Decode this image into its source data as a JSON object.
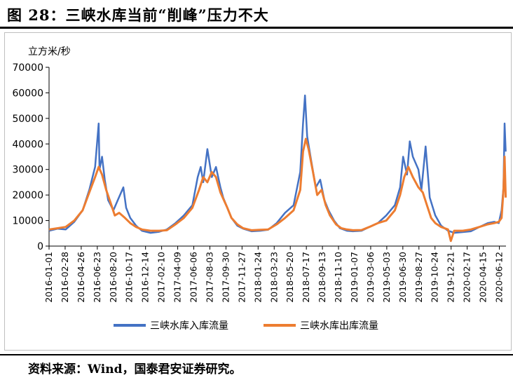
{
  "header": {
    "title": "图 28：三峡水库当前“削峰”压力不大"
  },
  "footer": {
    "source": "资料来源：Wind，国泰君安证券研究。"
  },
  "colors": {
    "inflow": "#4472C4",
    "outflow": "#ED7D31"
  },
  "chart_data": {
    "type": "line",
    "title": "",
    "ylabel": "立方米/秒",
    "ylim": [
      0,
      70000
    ],
    "yticks": [
      0,
      10000,
      20000,
      30000,
      40000,
      50000,
      60000,
      70000
    ],
    "ytick_labels": [
      "0",
      "10000",
      "20000",
      "30000",
      "40000",
      "50000",
      "60000",
      "70000"
    ],
    "xlim": [
      "2016-01-01",
      "2020-07-06"
    ],
    "xtick_labels": [
      "2016-01-01",
      "2016-02-28",
      "2016-04-26",
      "2016-06-23",
      "2016-08-20",
      "2016-10-17",
      "2016-12-14",
      "2017-02-10",
      "2017-04-09",
      "2017-06-06",
      "2017-08-03",
      "2017-09-30",
      "2017-11-27",
      "2018-01-24",
      "2018-03-23",
      "2018-05-20",
      "2018-07-17",
      "2018-09-13",
      "2018-11-10",
      "2019-01-07",
      "2019-03-06",
      "2019-05-03",
      "2019-06-30",
      "2019-08-27",
      "2019-10-24",
      "2019-12-21",
      "2020-02-17",
      "2020-04-15",
      "2020-06-12"
    ],
    "legend": "bottom",
    "series": [
      {
        "name": "三峡水库入库流量",
        "x": [
          "2016-01-01",
          "2016-02-01",
          "2016-03-01",
          "2016-04-01",
          "2016-05-01",
          "2016-05-25",
          "2016-06-15",
          "2016-06-28",
          "2016-07-01",
          "2016-07-10",
          "2016-07-20",
          "2016-08-01",
          "2016-08-20",
          "2016-09-05",
          "2016-09-25",
          "2016-10-05",
          "2016-10-20",
          "2016-11-10",
          "2016-12-01",
          "2017-01-01",
          "2017-02-01",
          "2017-03-01",
          "2017-04-01",
          "2017-05-01",
          "2017-06-01",
          "2017-06-20",
          "2017-07-01",
          "2017-07-10",
          "2017-07-25",
          "2017-08-10",
          "2017-08-25",
          "2017-09-10",
          "2017-09-20",
          "2017-10-05",
          "2017-10-20",
          "2017-11-10",
          "2017-12-01",
          "2018-01-01",
          "2018-02-01",
          "2018-03-01",
          "2018-04-01",
          "2018-05-01",
          "2018-06-01",
          "2018-06-25",
          "2018-07-05",
          "2018-07-12",
          "2018-07-20",
          "2018-08-01",
          "2018-08-20",
          "2018-09-05",
          "2018-09-20",
          "2018-10-05",
          "2018-10-25",
          "2018-11-15",
          "2018-12-10",
          "2019-01-01",
          "2019-02-01",
          "2019-03-01",
          "2019-04-01",
          "2019-05-01",
          "2019-06-01",
          "2019-06-20",
          "2019-07-01",
          "2019-07-15",
          "2019-07-25",
          "2019-08-05",
          "2019-08-25",
          "2019-09-05",
          "2019-09-20",
          "2019-10-05",
          "2019-10-25",
          "2019-11-15",
          "2019-12-10",
          "2020-01-01",
          "2020-02-01",
          "2020-03-01",
          "2020-04-01",
          "2020-05-01",
          "2020-05-25",
          "2020-06-10",
          "2020-06-20",
          "2020-06-27",
          "2020-07-01",
          "2020-07-05"
        ],
        "values": [
          6000,
          6800,
          6500,
          9500,
          14000,
          22000,
          31000,
          48000,
          30000,
          35000,
          26000,
          18000,
          14000,
          18000,
          23000,
          15000,
          11000,
          8000,
          6000,
          5200,
          5600,
          6500,
          9000,
          12000,
          16000,
          27000,
          31000,
          25000,
          38000,
          27000,
          31000,
          23000,
          19000,
          15000,
          11000,
          8000,
          6800,
          5800,
          6000,
          6400,
          9000,
          13000,
          16000,
          29000,
          48000,
          59000,
          43000,
          35000,
          23000,
          26000,
          18000,
          14000,
          10000,
          7000,
          6000,
          5800,
          6000,
          7500,
          9000,
          12000,
          16000,
          23000,
          35000,
          28000,
          41000,
          35000,
          30000,
          22000,
          39000,
          19000,
          12000,
          8000,
          6000,
          5200,
          5500,
          5800,
          7500,
          9000,
          9500,
          9000,
          14000,
          23000,
          48000,
          37000
        ]
      },
      {
        "name": "三峡水库出库流量",
        "x": [
          "2016-01-01",
          "2016-02-01",
          "2016-03-01",
          "2016-04-01",
          "2016-05-01",
          "2016-05-25",
          "2016-06-15",
          "2016-06-28",
          "2016-07-10",
          "2016-07-25",
          "2016-08-10",
          "2016-08-25",
          "2016-09-10",
          "2016-10-01",
          "2016-10-20",
          "2016-11-10",
          "2016-12-01",
          "2017-01-01",
          "2017-02-01",
          "2017-03-01",
          "2017-04-01",
          "2017-05-01",
          "2017-06-01",
          "2017-06-25",
          "2017-07-10",
          "2017-07-25",
          "2017-08-10",
          "2017-08-25",
          "2017-09-10",
          "2017-10-05",
          "2017-10-20",
          "2017-11-10",
          "2017-12-01",
          "2018-01-01",
          "2018-02-01",
          "2018-03-01",
          "2018-04-01",
          "2018-05-01",
          "2018-06-01",
          "2018-06-25",
          "2018-07-05",
          "2018-07-15",
          "2018-07-25",
          "2018-08-10",
          "2018-08-25",
          "2018-09-10",
          "2018-09-25",
          "2018-10-10",
          "2018-11-01",
          "2018-11-20",
          "2018-12-10",
          "2019-01-01",
          "2019-02-01",
          "2019-03-01",
          "2019-04-01",
          "2019-05-01",
          "2019-06-01",
          "2019-06-20",
          "2019-07-05",
          "2019-07-20",
          "2019-08-05",
          "2019-08-25",
          "2019-09-10",
          "2019-09-25",
          "2019-10-10",
          "2019-10-25",
          "2019-11-15",
          "2019-12-10",
          "2019-12-20",
          "2020-01-01",
          "2020-02-01",
          "2020-03-01",
          "2020-04-01",
          "2020-05-01",
          "2020-05-25",
          "2020-06-10",
          "2020-06-20",
          "2020-06-27",
          "2020-07-01",
          "2020-07-05"
        ],
        "values": [
          6500,
          7000,
          7500,
          10000,
          14000,
          21000,
          27000,
          31000,
          28000,
          22000,
          17000,
          12000,
          13000,
          11000,
          9000,
          7500,
          6500,
          6000,
          6000,
          6200,
          8500,
          11000,
          15000,
          22000,
          27000,
          25000,
          29000,
          27000,
          21000,
          15000,
          11000,
          8500,
          7000,
          6200,
          6400,
          6500,
          8500,
          11000,
          14000,
          22000,
          37000,
          42000,
          38000,
          29000,
          20000,
          22000,
          16000,
          12000,
          8500,
          7000,
          6500,
          6200,
          6300,
          7500,
          9000,
          10000,
          14000,
          20000,
          27000,
          31000,
          27000,
          23000,
          21000,
          16000,
          11000,
          9000,
          7500,
          6500,
          2000,
          6000,
          6000,
          6500,
          7500,
          8500,
          9000,
          9500,
          11000,
          22000,
          35000,
          19000
        ]
      }
    ]
  }
}
